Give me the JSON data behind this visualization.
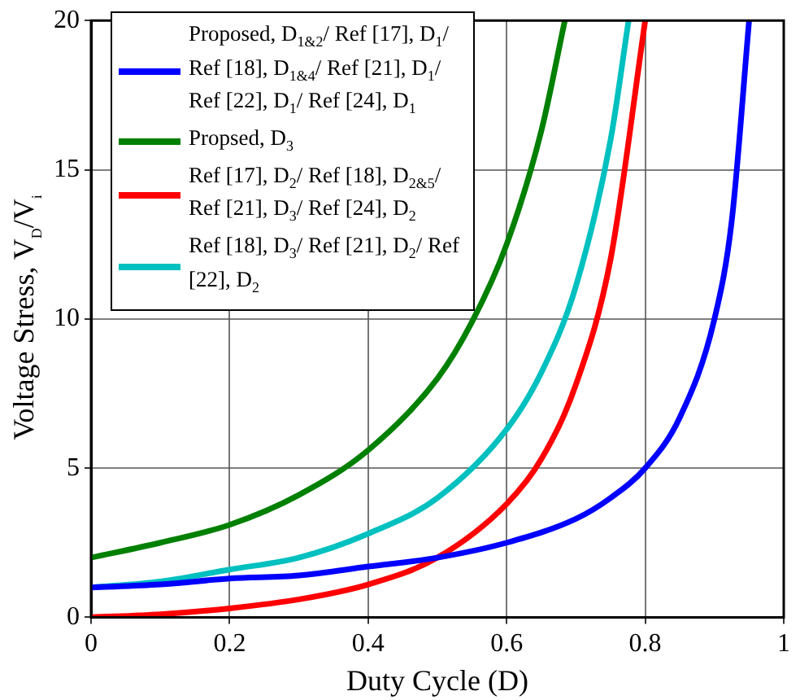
{
  "chart_data": {
    "type": "line",
    "xlabel": "Duty Cycle (D)",
    "ylabel": "Voltage Stress, V$_{D}$/V$_{i}$",
    "xlim": [
      0,
      1
    ],
    "xticks": [
      0,
      0.2,
      0.4,
      0.6,
      0.8,
      1
    ],
    "ylim": [
      0,
      20
    ],
    "yticks": [
      0,
      5,
      10,
      15,
      20
    ],
    "grid": true,
    "legend": "top left",
    "series": [
      {
        "name": "Proposed, D$_{1&2}$/ Ref [17], D$_{1}$/ Ref [18], D$_{1&4}$/ Ref [21], D$_{1}$/ Ref [22], D$_{1}$/ Ref [24], D$_{1}$",
        "color": "#0000ff",
        "x": [
          0,
          0.1,
          0.2,
          0.3,
          0.4,
          0.5,
          0.6,
          0.7,
          0.75,
          0.8,
          0.85,
          0.9,
          0.925,
          0.95
        ],
        "values": [
          1,
          1.1,
          1.3,
          1.4,
          1.7,
          2,
          2.5,
          3.3,
          4,
          5,
          6.7,
          10,
          13.3,
          20
        ]
      },
      {
        "name": "Propsed, D$_{3}$",
        "color": "#008000",
        "x": [
          0,
          0.1,
          0.2,
          0.3,
          0.4,
          0.5,
          0.55,
          0.6,
          0.65,
          0.684
        ],
        "values": [
          2,
          2.5,
          3.1,
          4.1,
          5.6,
          8,
          9.9,
          12.5,
          16.3,
          20
        ]
      },
      {
        "name": "Ref [17], D$_{2}$/ Ref [18], D$_{2&5}$/ Ref [21], D$_{3}$/ Ref [24], D$_{2}$",
        "color": "#ff0000",
        "x": [
          0,
          0.1,
          0.2,
          0.3,
          0.4,
          0.5,
          0.6,
          0.65,
          0.7,
          0.75,
          0.8
        ],
        "values": [
          0,
          0.1,
          0.3,
          0.6,
          1.1,
          2,
          3.8,
          5.3,
          7.8,
          12,
          20
        ]
      },
      {
        "name": "Ref [18], D$_{3}$/ Ref [21], D$_{2}$/ Ref [22], D$_{2}$",
        "color": "#00c0c0",
        "x": [
          0,
          0.1,
          0.2,
          0.3,
          0.4,
          0.5,
          0.6,
          0.65,
          0.7,
          0.75,
          0.776
        ],
        "values": [
          1,
          1.2,
          1.6,
          2,
          2.8,
          4,
          6.3,
          8.2,
          11.1,
          16,
          20
        ]
      }
    ]
  }
}
